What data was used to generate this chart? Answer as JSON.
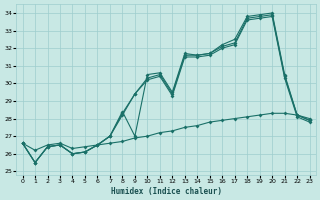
{
  "xlabel": "Humidex (Indice chaleur)",
  "xlim": [
    -0.5,
    23.5
  ],
  "ylim": [
    24.8,
    34.5
  ],
  "yticks": [
    25,
    26,
    27,
    28,
    29,
    30,
    31,
    32,
    33,
    34
  ],
  "xticks": [
    0,
    1,
    2,
    3,
    4,
    5,
    6,
    7,
    8,
    9,
    10,
    11,
    12,
    13,
    14,
    15,
    16,
    17,
    18,
    19,
    20,
    21,
    22,
    23
  ],
  "bg_color": "#c8e8e4",
  "grid_color": "#9ecece",
  "line_color": "#1a7068",
  "series1": [
    26.6,
    25.5,
    26.4,
    26.5,
    26.0,
    26.1,
    26.5,
    27.0,
    28.4,
    27.0,
    30.5,
    30.6,
    29.5,
    31.7,
    31.6,
    31.7,
    32.2,
    32.5,
    33.8,
    33.9,
    34.0,
    30.5,
    28.2,
    27.9
  ],
  "series2": [
    26.6,
    25.5,
    26.4,
    26.5,
    26.0,
    26.1,
    26.5,
    27.0,
    28.3,
    29.4,
    30.3,
    30.5,
    29.4,
    31.6,
    31.6,
    31.7,
    32.1,
    32.3,
    33.7,
    33.8,
    33.9,
    30.4,
    28.2,
    27.9
  ],
  "series3": [
    26.6,
    25.5,
    26.4,
    26.5,
    26.0,
    26.1,
    26.5,
    27.0,
    28.2,
    29.4,
    30.2,
    30.4,
    29.3,
    31.5,
    31.5,
    31.6,
    32.0,
    32.2,
    33.6,
    33.7,
    33.8,
    30.3,
    28.1,
    27.8
  ],
  "series4": [
    26.6,
    26.2,
    26.5,
    26.6,
    26.3,
    26.4,
    26.5,
    26.6,
    26.7,
    26.9,
    27.0,
    27.2,
    27.3,
    27.5,
    27.6,
    27.8,
    27.9,
    28.0,
    28.1,
    28.2,
    28.3,
    28.3,
    28.2,
    28.0
  ]
}
